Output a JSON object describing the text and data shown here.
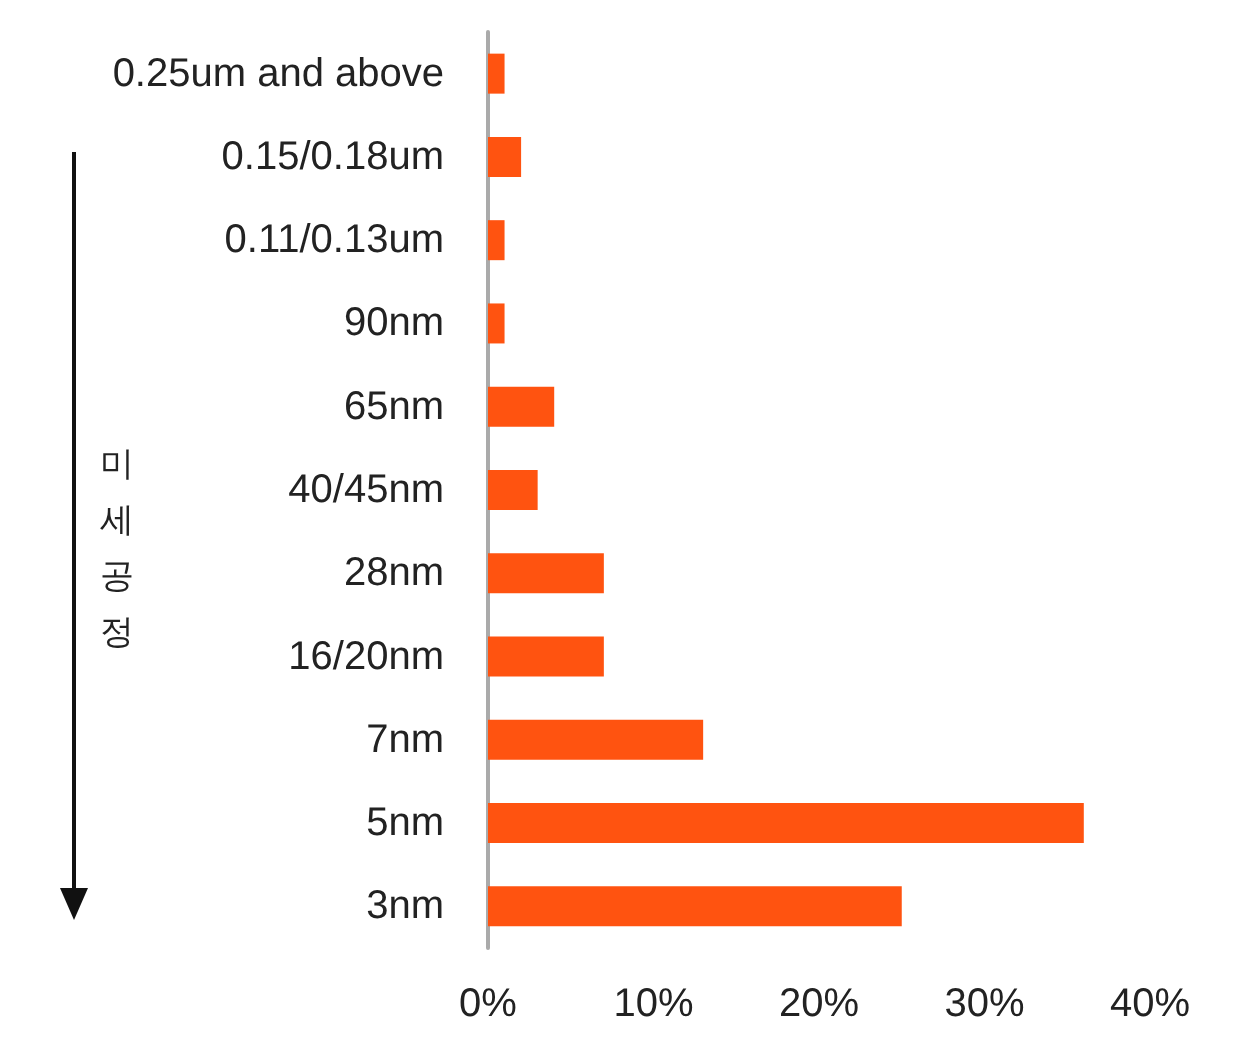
{
  "chart_data": {
    "type": "bar",
    "orientation": "horizontal",
    "ylabel": "미세공정",
    "categories": [
      "0.25um and above",
      "0.15/0.18um",
      "0.11/0.13um",
      "90nm",
      "65nm",
      "40/45nm",
      "28nm",
      "16/20nm",
      "7nm",
      "5nm",
      "3nm"
    ],
    "values": [
      1,
      2,
      1,
      1,
      4,
      3,
      7,
      7,
      13,
      36,
      25
    ],
    "color": "#ff5310",
    "xlim": [
      0,
      40
    ],
    "xticks": [
      {
        "value": 0,
        "label": "0%"
      },
      {
        "value": 10,
        "label": "10%"
      },
      {
        "value": 20,
        "label": "20%"
      },
      {
        "value": 30,
        "label": "30%"
      },
      {
        "value": 40,
        "label": "40%"
      }
    ],
    "grid": false
  }
}
